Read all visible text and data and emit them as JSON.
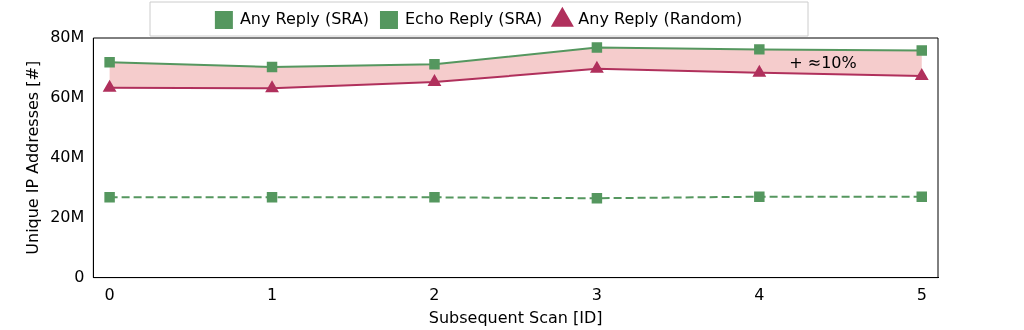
{
  "chart_data": {
    "type": "line",
    "xlabel": "Subsequent Scan [ID]",
    "ylabel": "Unique IP Addresses [#]",
    "x": [
      0,
      1,
      2,
      3,
      4,
      5
    ],
    "series": [
      {
        "name": "Any Reply (SRA)",
        "color": "#55975f",
        "values": [
          71.9,
          70.3,
          71.2,
          76.8,
          76.2,
          75.8
        ],
        "lower": [
          63.4,
          63.2,
          65.3,
          69.7,
          68.4,
          67.3
        ],
        "upper": [
          71.9,
          70.3,
          71.2,
          76.8,
          76.2,
          75.8
        ],
        "marker": "square",
        "line_style": "solid"
      },
      {
        "name": "Echo Reply (SRA)",
        "color": "#55975f",
        "values": [
          26.8,
          26.8,
          26.8,
          26.5,
          27.0,
          27.0
        ],
        "marker": "square",
        "line_style": "dashed"
      },
      {
        "name": "Any Reply (Random)",
        "color": "#b0305c",
        "values": [
          63.4,
          63.2,
          65.3,
          69.7,
          68.4,
          67.3
        ],
        "marker": "triangle",
        "line_style": "solid"
      }
    ],
    "xlim": [
      -0.1,
      5.1
    ],
    "xticks": [
      0,
      1,
      2,
      3,
      4,
      5
    ],
    "ylim": [
      0,
      80
    ],
    "yticks": [
      0,
      {
        "value": 20,
        "label": "20M"
      },
      {
        "value": 40,
        "label": "40M"
      },
      {
        "value": 60,
        "label": "60M"
      },
      {
        "value": 80,
        "label": "80M"
      }
    ],
    "annotations": [
      "+ ≈10%"
    ],
    "legend": "top",
    "grid": false
  }
}
